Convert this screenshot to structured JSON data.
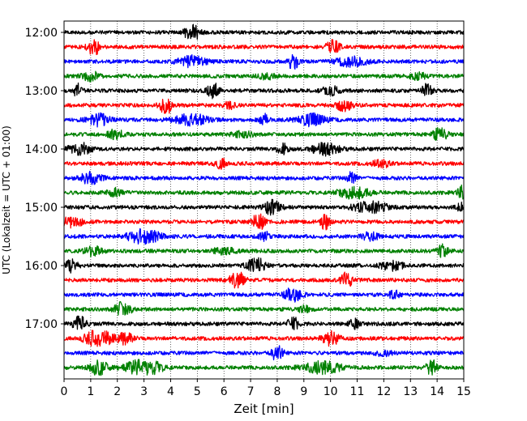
{
  "chart_data": {
    "type": "line",
    "title": "",
    "xlabel": "Zeit  [min]",
    "ylabel": "UTC (Lokalzeit = UTC + 01:00)",
    "xlim": [
      0,
      15
    ],
    "x_ticks": [
      "0",
      "1",
      "2",
      "3",
      "4",
      "5",
      "6",
      "7",
      "8",
      "9",
      "10",
      "11",
      "12",
      "13",
      "14",
      "15"
    ],
    "y_ticks": [
      "12:00",
      "13:00",
      "14:00",
      "15:00",
      "16:00",
      "17:00"
    ],
    "grid": "vertical dotted",
    "colors": [
      "#000000",
      "#ff0000",
      "#0000ff",
      "#008000"
    ],
    "traces": [
      {
        "start": "12:00",
        "color": "#000000",
        "bursts": [
          [
            4.8,
            1.7,
            0.25
          ]
        ]
      },
      {
        "start": "12:15",
        "color": "#ff0000",
        "bursts": [
          [
            1.1,
            1.6,
            0.2
          ],
          [
            10.1,
            1.7,
            0.2
          ]
        ]
      },
      {
        "start": "12:30",
        "color": "#0000ff",
        "bursts": [
          [
            4.8,
            0.8,
            0.5
          ],
          [
            8.6,
            1.7,
            0.15
          ],
          [
            10.8,
            0.7,
            0.6
          ]
        ]
      },
      {
        "start": "12:45",
        "color": "#008000",
        "bursts": [
          [
            1.0,
            0.7,
            0.3
          ],
          [
            7.6,
            0.5,
            0.3
          ],
          [
            13.3,
            0.5,
            0.3
          ]
        ]
      },
      {
        "start": "13:00",
        "color": "#000000",
        "bursts": [
          [
            0.5,
            1.2,
            0.15
          ],
          [
            5.6,
            1.3,
            0.2
          ],
          [
            10.0,
            0.7,
            0.3
          ],
          [
            13.6,
            1.0,
            0.2
          ]
        ]
      },
      {
        "start": "13:15",
        "color": "#ff0000",
        "bursts": [
          [
            3.8,
            1.8,
            0.2
          ],
          [
            6.2,
            0.5,
            0.2
          ],
          [
            10.5,
            0.8,
            0.3
          ]
        ]
      },
      {
        "start": "13:30",
        "color": "#0000ff",
        "bursts": [
          [
            1.3,
            0.9,
            0.4
          ],
          [
            4.8,
            0.9,
            0.6
          ],
          [
            7.5,
            1.1,
            0.15
          ],
          [
            9.3,
            0.9,
            0.5
          ]
        ]
      },
      {
        "start": "13:45",
        "color": "#008000",
        "bursts": [
          [
            1.9,
            0.8,
            0.3
          ],
          [
            6.7,
            0.4,
            0.4
          ],
          [
            14.1,
            0.9,
            0.3
          ]
        ]
      },
      {
        "start": "14:00",
        "color": "#000000",
        "bursts": [
          [
            0.6,
            0.9,
            0.4
          ],
          [
            8.2,
            0.8,
            0.2
          ],
          [
            9.8,
            0.9,
            0.5
          ]
        ]
      },
      {
        "start": "14:15",
        "color": "#ff0000",
        "bursts": [
          [
            5.9,
            0.8,
            0.2
          ],
          [
            11.9,
            0.6,
            0.3
          ]
        ]
      },
      {
        "start": "14:30",
        "color": "#0000ff",
        "bursts": [
          [
            1.0,
            0.9,
            0.4
          ],
          [
            10.8,
            1.2,
            0.15
          ]
        ]
      },
      {
        "start": "14:45",
        "color": "#008000",
        "bursts": [
          [
            1.9,
            0.6,
            0.3
          ],
          [
            10.9,
            0.9,
            0.6
          ],
          [
            14.9,
            1.2,
            0.15
          ]
        ]
      },
      {
        "start": "15:00",
        "color": "#000000",
        "bursts": [
          [
            7.8,
            1.2,
            0.3
          ],
          [
            11.5,
            0.9,
            0.6
          ],
          [
            15.0,
            1.1,
            0.2
          ]
        ]
      },
      {
        "start": "15:15",
        "color": "#ff0000",
        "bursts": [
          [
            0.3,
            0.8,
            0.4
          ],
          [
            7.3,
            1.5,
            0.2
          ],
          [
            9.8,
            1.3,
            0.15
          ]
        ]
      },
      {
        "start": "15:30",
        "color": "#0000ff",
        "bursts": [
          [
            3.0,
            1.1,
            0.6
          ],
          [
            7.5,
            1.0,
            0.15
          ],
          [
            11.5,
            0.6,
            0.3
          ]
        ]
      },
      {
        "start": "15:45",
        "color": "#008000",
        "bursts": [
          [
            1.1,
            0.8,
            0.3
          ],
          [
            6.0,
            0.5,
            0.4
          ],
          [
            14.2,
            0.9,
            0.2
          ]
        ]
      },
      {
        "start": "16:00",
        "color": "#000000",
        "bursts": [
          [
            0.3,
            1.2,
            0.2
          ],
          [
            7.2,
            1.3,
            0.3
          ],
          [
            12.3,
            0.7,
            0.4
          ]
        ]
      },
      {
        "start": "16:15",
        "color": "#ff0000",
        "bursts": [
          [
            6.5,
            1.5,
            0.25
          ],
          [
            10.6,
            1.3,
            0.2
          ]
        ]
      },
      {
        "start": "16:30",
        "color": "#0000ff",
        "bursts": [
          [
            8.6,
            1.2,
            0.3
          ],
          [
            12.4,
            0.6,
            0.2
          ]
        ]
      },
      {
        "start": "16:45",
        "color": "#008000",
        "bursts": [
          [
            2.2,
            1.2,
            0.3
          ],
          [
            9.0,
            0.6,
            0.2
          ]
        ]
      },
      {
        "start": "17:00",
        "color": "#000000",
        "bursts": [
          [
            0.6,
            1.2,
            0.25
          ],
          [
            8.6,
            1.0,
            0.2
          ],
          [
            10.9,
            0.7,
            0.2
          ]
        ]
      },
      {
        "start": "17:15",
        "color": "#ff0000",
        "bursts": [
          [
            1.3,
            1.4,
            0.5
          ],
          [
            2.3,
            0.8,
            0.3
          ],
          [
            10.0,
            1.2,
            0.3
          ]
        ]
      },
      {
        "start": "17:30",
        "color": "#0000ff",
        "bursts": [
          [
            8.0,
            1.3,
            0.2
          ],
          [
            12.0,
            0.4,
            0.3
          ]
        ]
      },
      {
        "start": "17:45",
        "color": "#008000",
        "bursts": [
          [
            1.3,
            1.2,
            0.3
          ],
          [
            3.0,
            1.5,
            0.6
          ],
          [
            9.7,
            0.9,
            0.7
          ],
          [
            13.8,
            1.3,
            0.2
          ]
        ]
      }
    ]
  }
}
